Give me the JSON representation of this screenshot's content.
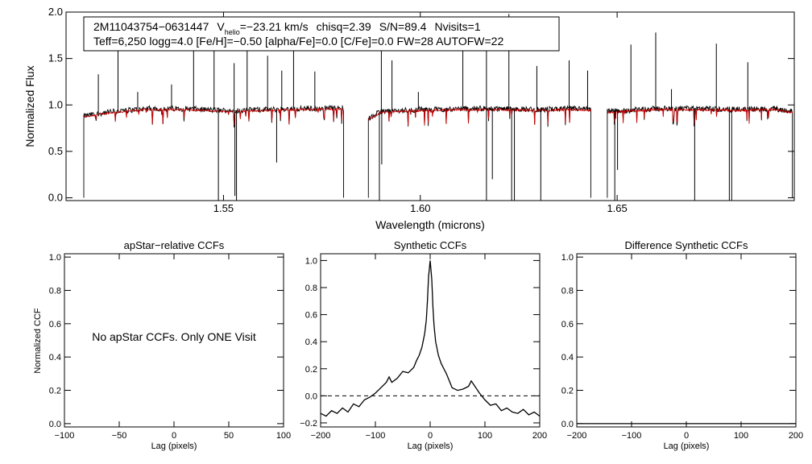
{
  "chart_data": [
    {
      "type": "line",
      "panel": "spectrum",
      "xlabel": "Wavelength (microns)",
      "ylabel": "Normalized Flux",
      "xlim": [
        1.51,
        1.695
      ],
      "ylim": [
        -0.03,
        2.0
      ],
      "xticks": [
        1.55,
        1.6,
        1.65
      ],
      "xtick_labels": [
        "1.55",
        "1.60",
        "1.65"
      ],
      "yticks": [
        0.0,
        0.5,
        1.0,
        1.5,
        2.0
      ],
      "ytick_labels": [
        "0.0",
        "0.5",
        "1.0",
        "1.5",
        "2.0"
      ],
      "info_box": {
        "id": "2M11043754−0631447",
        "v_label": "V",
        "v_subscript": "helio",
        "v_value": "=−23.21 km/s",
        "chisq": "chisq=2.39",
        "snr": "S/N=89.4",
        "nvisits": "Nvisits=1",
        "line2": "Teff=6,250 logg=4.0 [Fe/H]=−0.50 [alpha/Fe]=0.0 [C/Fe]=0.0 FW=28 AUTOFW=22"
      },
      "chips": [
        [
          1.5145,
          1.5805
        ],
        [
          1.5868,
          1.6433
        ],
        [
          1.6475,
          1.6945
        ]
      ],
      "continuum": {
        "observed_color": "#000000",
        "model_color": "#cc0000",
        "points": [
          [
            1.5145,
            0.88
          ],
          [
            1.52,
            0.92
          ],
          [
            1.53,
            0.96
          ],
          [
            1.54,
            0.96
          ],
          [
            1.55,
            0.94
          ],
          [
            1.56,
            0.95
          ],
          [
            1.57,
            0.96
          ],
          [
            1.58,
            0.97
          ],
          [
            1.5868,
            0.85
          ],
          [
            1.59,
            0.93
          ],
          [
            1.6,
            0.95
          ],
          [
            1.61,
            0.96
          ],
          [
            1.62,
            0.96
          ],
          [
            1.63,
            0.95
          ],
          [
            1.64,
            0.96
          ],
          [
            1.6433,
            0.95
          ],
          [
            1.6475,
            0.93
          ],
          [
            1.66,
            0.96
          ],
          [
            1.67,
            0.96
          ],
          [
            1.68,
            0.95
          ],
          [
            1.69,
            0.96
          ],
          [
            1.6945,
            0.93
          ]
        ]
      },
      "spikes_up": [
        [
          1.5182,
          1.33
        ],
        [
          1.5232,
          1.72
        ],
        [
          1.5282,
          1.14
        ],
        [
          1.5368,
          1.22
        ],
        [
          1.5424,
          1.58
        ],
        [
          1.5476,
          1.59
        ],
        [
          1.5527,
          1.45
        ],
        [
          1.556,
          1.72
        ],
        [
          1.5612,
          1.53
        ],
        [
          1.5648,
          1.37
        ],
        [
          1.5678,
          1.64
        ],
        [
          1.5732,
          1.36
        ],
        [
          1.5901,
          1.82
        ],
        [
          1.5928,
          1.48
        ],
        [
          1.5995,
          1.14
        ],
        [
          1.6108,
          1.62
        ],
        [
          1.6168,
          1.8
        ],
        [
          1.6225,
          1.98
        ],
        [
          1.6296,
          1.42
        ],
        [
          1.6378,
          1.48
        ],
        [
          1.6425,
          1.37
        ],
        [
          1.6535,
          1.65
        ],
        [
          1.6598,
          1.78
        ],
        [
          1.6638,
          1.17
        ],
        [
          1.6752,
          1.66
        ],
        [
          1.6832,
          1.46
        ]
      ],
      "spikes_down": [
        [
          1.5487,
          -0.03
        ],
        [
          1.5529,
          0.02
        ],
        [
          1.5533,
          -0.03
        ],
        [
          1.5635,
          0.38
        ],
        [
          1.5896,
          -0.03
        ],
        [
          1.5902,
          0.36
        ],
        [
          1.6168,
          -0.03
        ],
        [
          1.6183,
          0.2
        ],
        [
          1.6232,
          -0.03
        ],
        [
          1.6239,
          -0.03
        ],
        [
          1.6306,
          -0.03
        ],
        [
          1.6494,
          -0.03
        ],
        [
          1.6501,
          0.3
        ],
        [
          1.6697,
          -0.03
        ],
        [
          1.6785,
          -0.03
        ],
        [
          1.6791,
          -0.03
        ]
      ]
    },
    {
      "type": "line",
      "panel": "apstar_relative",
      "title": "apStar−relative CCFs",
      "xlabel": "Lag (pixels)",
      "ylabel": "Normalized CCF",
      "xlim": [
        -100,
        100
      ],
      "ylim": [
        -0.02,
        1.02
      ],
      "xticks": [
        -100,
        -50,
        0,
        50,
        100
      ],
      "xtick_labels": [
        "−100",
        "−50",
        "0",
        "50",
        "100"
      ],
      "yticks": [
        0.0,
        0.2,
        0.4,
        0.6,
        0.8,
        1.0
      ],
      "ytick_labels": [
        "0.0",
        "0.2",
        "0.4",
        "0.6",
        "0.8",
        "1.0"
      ],
      "annotation": "No apStar CCFs.  Only ONE Visit",
      "series": []
    },
    {
      "type": "line",
      "panel": "synthetic",
      "title": "Synthetic CCFs",
      "xlabel": "Lag (pixels)",
      "ylabel": "",
      "xlim": [
        -200,
        200
      ],
      "ylim": [
        -0.23,
        1.05
      ],
      "xticks": [
        -200,
        -100,
        0,
        100,
        200
      ],
      "xtick_labels": [
        "−200",
        "−100",
        "0",
        "100",
        "200"
      ],
      "yticks": [
        -0.2,
        0.0,
        0.2,
        0.4,
        0.6,
        0.8,
        1.0
      ],
      "ytick_labels": [
        "−0.2",
        "0.0",
        "0.2",
        "0.4",
        "0.6",
        "0.8",
        "1.0"
      ],
      "zero_line": 0.0,
      "series": [
        {
          "name": "ccf",
          "x": [
            -200,
            -190,
            -180,
            -170,
            -160,
            -150,
            -140,
            -130,
            -120,
            -110,
            -100,
            -90,
            -80,
            -75,
            -70,
            -60,
            -50,
            -40,
            -30,
            -25,
            -20,
            -15,
            -10,
            -7,
            -5,
            -3,
            0,
            3,
            5,
            7,
            10,
            15,
            20,
            30,
            40,
            50,
            60,
            70,
            75,
            80,
            90,
            100,
            110,
            120,
            130,
            140,
            150,
            160,
            170,
            180,
            190,
            200
          ],
          "y": [
            -0.13,
            -0.15,
            -0.11,
            -0.13,
            -0.09,
            -0.12,
            -0.06,
            -0.08,
            -0.03,
            -0.01,
            0.02,
            0.06,
            0.1,
            0.14,
            0.1,
            0.13,
            0.18,
            0.17,
            0.21,
            0.26,
            0.3,
            0.36,
            0.46,
            0.56,
            0.7,
            0.88,
            1.0,
            0.86,
            0.66,
            0.52,
            0.4,
            0.3,
            0.24,
            0.16,
            0.06,
            0.04,
            0.05,
            0.07,
            0.11,
            0.08,
            0.02,
            -0.03,
            -0.07,
            -0.06,
            -0.11,
            -0.09,
            -0.12,
            -0.13,
            -0.1,
            -0.14,
            -0.12,
            -0.15
          ]
        }
      ]
    },
    {
      "type": "line",
      "panel": "difference_synthetic",
      "title": "Difference Synthetic CCFs",
      "xlabel": "Lag (pixels)",
      "ylabel": "",
      "xlim": [
        -200,
        200
      ],
      "ylim": [
        -0.02,
        1.02
      ],
      "xticks": [
        -200,
        -100,
        0,
        100,
        200
      ],
      "xtick_labels": [
        "−200",
        "−100",
        "0",
        "100",
        "200"
      ],
      "yticks": [
        0.0,
        0.2,
        0.4,
        0.6,
        0.8,
        1.0
      ],
      "ytick_labels": [
        "0.0",
        "0.2",
        "0.4",
        "0.6",
        "0.8",
        "1.0"
      ],
      "series": [
        {
          "name": "diff",
          "x": [
            -200,
            200
          ],
          "y": [
            0.0,
            0.0
          ]
        }
      ]
    }
  ]
}
